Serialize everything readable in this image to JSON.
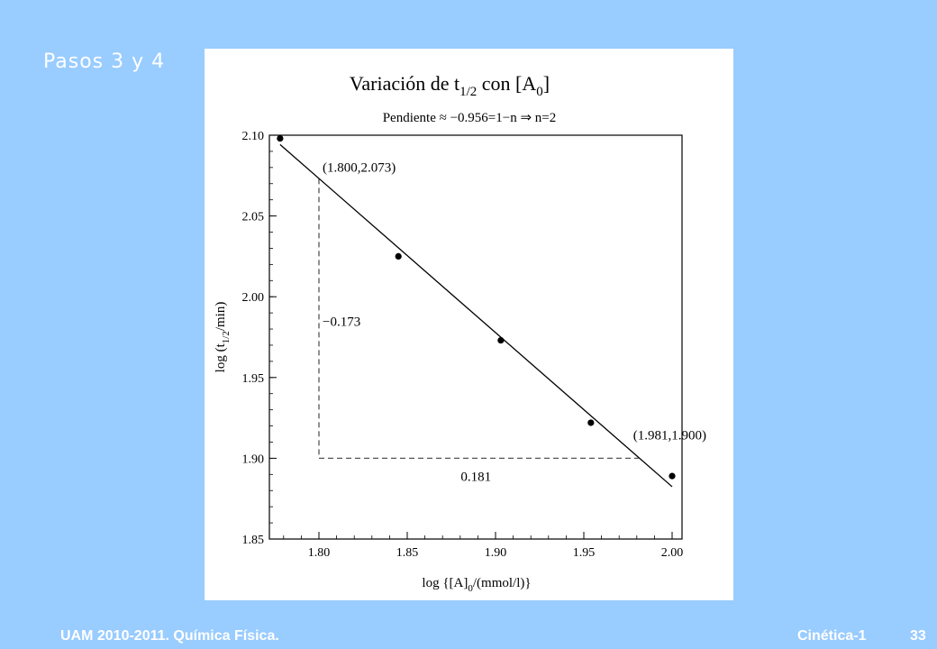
{
  "slide": {
    "title": "Pasos 3 y 4",
    "footer_left": "UAM 2010-2011.  Química Física.",
    "footer_right": "Cinética-1",
    "page_number": "33"
  },
  "colors": {
    "background": "#99ccff",
    "panel": "#ffffff",
    "ink": "#000000"
  },
  "chart_data": {
    "type": "scatter",
    "title": {
      "prefix": "Variación de  t",
      "sub1": "1/2",
      "mid": " con [A",
      "sub2": "0",
      "suffix": "]"
    },
    "subtitle": "Pendiente ≈ −0.956=1−n ⇒ n=2",
    "xlabel": {
      "prefix": "log {[A]",
      "sub": "0",
      "suffix": "/(mmol/l)}"
    },
    "ylabel": {
      "prefix": "log (t",
      "sub": "1/2",
      "suffix": "/min)"
    },
    "xlim": [
      1.775,
      2.0
    ],
    "ylim": [
      1.85,
      2.1
    ],
    "xticks": [
      1.8,
      1.85,
      1.9,
      1.95,
      2.0
    ],
    "xtick_labels": [
      "1.80",
      "1.85",
      "1.90",
      "1.95",
      "2.00"
    ],
    "yticks": [
      1.85,
      1.9,
      1.95,
      2.0,
      2.05,
      2.1
    ],
    "ytick_labels": [
      "1.85",
      "1.90",
      "1.95",
      "2.00",
      "2.05",
      "2.10"
    ],
    "points": [
      {
        "x": 1.778,
        "y": 2.098
      },
      {
        "x": 1.845,
        "y": 2.025
      },
      {
        "x": 1.903,
        "y": 1.973
      },
      {
        "x": 1.954,
        "y": 1.922
      },
      {
        "x": 2.0,
        "y": 1.889
      }
    ],
    "fit_line": {
      "x": [
        1.778,
        2.0
      ],
      "y": [
        2.0942,
        1.8824
      ]
    },
    "slope_triangle": {
      "x1": 1.8,
      "y1": 2.073,
      "x2": 1.981,
      "y2": 1.9,
      "label_point1": "(1.800,2.073)",
      "label_point2": "(1.981,1.900)",
      "label_dy": "−0.173",
      "label_dx": "0.181"
    },
    "grid": false
  }
}
